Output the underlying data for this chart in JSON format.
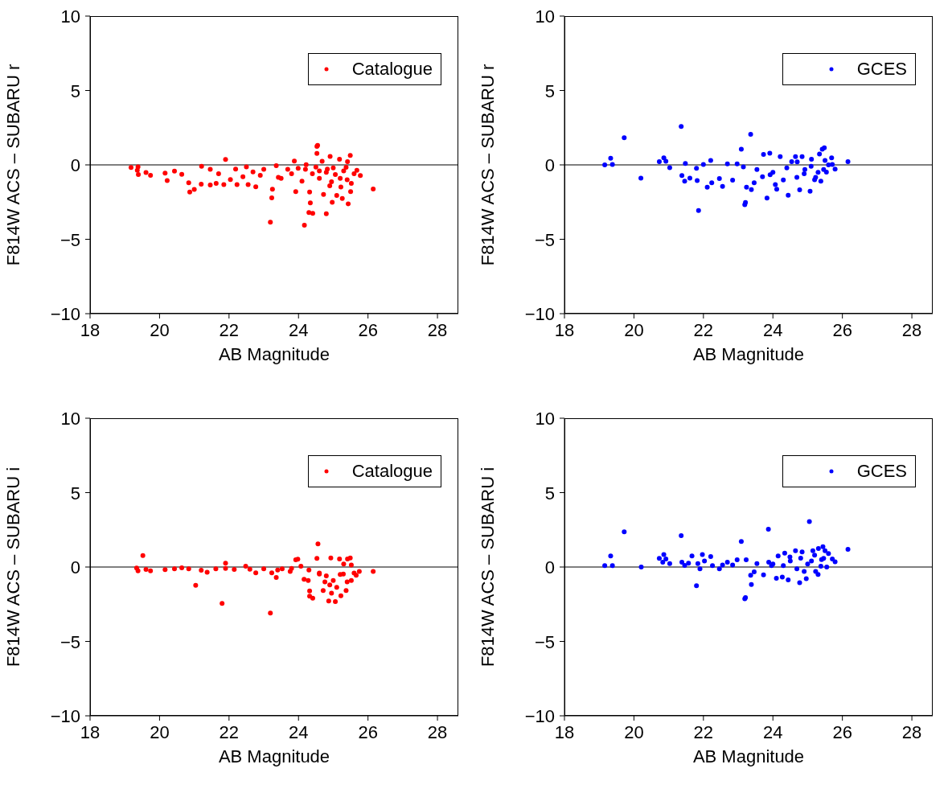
{
  "chart_data": [
    {
      "type": "scatter",
      "xlabel": "AB Magnitude",
      "ylabel": "F814W ACS – SUBARU r",
      "xlim": [
        18,
        28.6
      ],
      "xticks": [
        18,
        20,
        22,
        24,
        26,
        28
      ],
      "ylim": [
        -10,
        10
      ],
      "yticks": [
        -10,
        -5,
        0,
        5,
        10
      ],
      "legend": "top right",
      "marker": "circle",
      "ref_lines": [
        {
          "axis": "y",
          "value": 0,
          "color": "#000000"
        }
      ],
      "series": [
        {
          "name": "Catalogue",
          "color": "#ff0000",
          "x": [
            19.18,
            19.38,
            19.36,
            19.39,
            19.61,
            19.74,
            20.16,
            20.22,
            20.43,
            20.64,
            20.84,
            20.87,
            21.0,
            21.21,
            21.2,
            21.46,
            21.46,
            21.9,
            21.63,
            21.85,
            22.04,
            22.19,
            22.23,
            22.5,
            22.55,
            22.77,
            22.69,
            23.0,
            23.19,
            23.23,
            23.25,
            23.36,
            23.42,
            23.69,
            23.88,
            23.92,
            23.99,
            24.17,
            24.22,
            24.3,
            24.32,
            24.34,
            24.41,
            24.53,
            24.55,
            24.53,
            24.6,
            24.68,
            24.72,
            24.8,
            24.83,
            24.91,
            24.95,
            24.97,
            25.06,
            25.1,
            25.18,
            25.22,
            25.26,
            25.37,
            25.41,
            25.43,
            25.49,
            25.52,
            25.68,
            25.78,
            26.15,
            24.2,
            24.4,
            24.6,
            24.8,
            25.0,
            25.2,
            25.4,
            25.6,
            24.5,
            24.9,
            25.3,
            25.5,
            23.8,
            23.5,
            22.9,
            22.4,
            21.7,
            24.1
          ],
          "values": [
            -0.18,
            -0.14,
            -0.37,
            -0.65,
            -0.51,
            -0.7,
            -0.56,
            -1.05,
            -0.42,
            -0.63,
            -1.2,
            -1.83,
            -1.65,
            -0.1,
            -1.3,
            -0.3,
            -1.35,
            0.36,
            -1.24,
            -1.33,
            -0.98,
            -0.28,
            -1.33,
            -0.14,
            -1.33,
            -1.47,
            -0.47,
            -0.3,
            -3.85,
            -2.22,
            -1.64,
            -0.05,
            -0.84,
            -0.3,
            0.26,
            -1.8,
            -0.23,
            -4.05,
            0.02,
            -3.2,
            -1.83,
            -2.55,
            -3.26,
            1.24,
            1.31,
            0.77,
            -0.4,
            0.24,
            -1.99,
            -3.29,
            -0.28,
            0.57,
            -1.13,
            -2.51,
            -0.65,
            -2.05,
            0.38,
            -1.48,
            -2.26,
            -0.16,
            0.22,
            -2.62,
            0.63,
            -1.24,
            -0.37,
            -0.72,
            -1.62,
            -0.3,
            -0.6,
            -0.9,
            -0.5,
            -0.2,
            -0.9,
            -1.0,
            -0.6,
            -0.15,
            -1.4,
            -0.4,
            -1.8,
            -0.6,
            -0.9,
            -0.7,
            -0.8,
            -0.6,
            -1.1
          ]
        }
      ]
    },
    {
      "type": "scatter",
      "xlabel": "AB Magnitude",
      "ylabel": "F814W ACS – SUBARU r",
      "xlim": [
        18,
        28.6
      ],
      "xticks": [
        18,
        20,
        22,
        24,
        26,
        28
      ],
      "ylim": [
        -10,
        10
      ],
      "yticks": [
        -10,
        -5,
        0,
        5,
        10
      ],
      "legend": "top right",
      "marker": "circle",
      "ref_lines": [
        {
          "axis": "y",
          "value": 0,
          "color": "#000000"
        }
      ],
      "series": [
        {
          "name": "GCES",
          "color": "#0000ff",
          "x": [
            19.16,
            19.33,
            19.38,
            19.72,
            20.2,
            20.73,
            20.86,
            20.92,
            21.03,
            21.36,
            21.38,
            21.46,
            21.48,
            21.61,
            21.8,
            21.86,
            21.82,
            22.0,
            22.11,
            22.21,
            22.24,
            22.46,
            22.55,
            22.69,
            22.84,
            22.97,
            23.09,
            23.15,
            23.19,
            23.21,
            23.24,
            23.36,
            23.38,
            23.46,
            23.54,
            23.73,
            23.83,
            23.91,
            23.92,
            24.07,
            24.11,
            24.21,
            24.3,
            24.44,
            24.54,
            24.65,
            24.69,
            24.77,
            24.84,
            24.92,
            25.07,
            25.11,
            25.23,
            25.34,
            25.38,
            25.42,
            25.48,
            25.46,
            25.54,
            25.69,
            25.71,
            25.79,
            26.16,
            24.4,
            24.7,
            24.9,
            25.1,
            25.3,
            25.5,
            24.0,
            23.7,
            25.2,
            25.6
          ],
          "values": [
            0,
            0.44,
            0.03,
            1.82,
            -0.89,
            0.21,
            0.47,
            0.24,
            -0.19,
            2.58,
            -0.72,
            -1.1,
            0.09,
            -0.89,
            -0.23,
            -3.07,
            -1.05,
            0.03,
            -1.5,
            0.3,
            -1.2,
            -0.92,
            -1.45,
            0.07,
            -1.03,
            0.07,
            1.05,
            -0.14,
            -2.67,
            -2.53,
            -1.5,
            2.06,
            -1.66,
            -1.2,
            -0.31,
            0.7,
            -2.23,
            0.79,
            -0.66,
            -1.33,
            -1.64,
            0.56,
            -1.01,
            -2.04,
            0.21,
            0.56,
            -0.84,
            -1.68,
            0.56,
            -0.31,
            -1.77,
            0.38,
            -0.84,
            0.73,
            -1.1,
            1.05,
            1.15,
            -0.31,
            -0.49,
            0.47,
            0.03,
            -0.28,
            0.21,
            -0.2,
            0.2,
            -0.6,
            -0.1,
            -0.5,
            0.3,
            -0.5,
            -0.8,
            -1.0,
            0.0
          ]
        }
      ]
    },
    {
      "type": "scatter",
      "xlabel": "AB Magnitude",
      "ylabel": "F814W ACS – SUBARU i",
      "xlim": [
        18,
        28.6
      ],
      "xticks": [
        18,
        20,
        22,
        24,
        26,
        28
      ],
      "ylim": [
        -10,
        10
      ],
      "yticks": [
        -10,
        -5,
        0,
        5,
        10
      ],
      "legend": "top right",
      "marker": "circle",
      "ref_lines": [
        {
          "axis": "y",
          "value": 0,
          "color": "#000000"
        }
      ],
      "series": [
        {
          "name": "Catalogue",
          "color": "#ff0000",
          "x": [
            19.34,
            19.38,
            19.52,
            19.61,
            19.74,
            20.16,
            20.43,
            20.64,
            20.84,
            21.04,
            21.2,
            21.37,
            21.62,
            21.8,
            21.9,
            22.15,
            22.48,
            22.77,
            23.0,
            23.19,
            23.23,
            23.36,
            23.53,
            23.76,
            23.92,
            23.98,
            24.07,
            24.16,
            24.28,
            24.32,
            24.32,
            24.41,
            24.53,
            24.56,
            24.6,
            24.71,
            24.76,
            24.87,
            24.93,
            24.95,
            25.06,
            25.1,
            25.18,
            25.22,
            25.29,
            25.37,
            25.41,
            25.49,
            25.52,
            25.52,
            25.66,
            25.75,
            26.15,
            24.3,
            24.6,
            24.8,
            25.0,
            25.2,
            25.4,
            25.6,
            24.9,
            25.3,
            23.8,
            23.4,
            22.6,
            21.9
          ],
          "values": [
            -0.07,
            -0.25,
            0.77,
            -0.16,
            -0.26,
            -0.18,
            -0.12,
            -0.05,
            -0.12,
            -1.23,
            -0.21,
            -0.35,
            -0.12,
            -2.44,
            0.26,
            -0.16,
            0.05,
            -0.39,
            -0.12,
            -3.1,
            -0.39,
            -0.7,
            -0.12,
            -0.3,
            0.49,
            0.53,
            0.05,
            -0.82,
            -0.91,
            -1.61,
            -1.96,
            -2.09,
            0.58,
            1.56,
            -0.47,
            -1.58,
            -1.0,
            -2.28,
            0.61,
            -1.75,
            -2.32,
            -1.37,
            0.54,
            -1.93,
            -0.47,
            -1.58,
            0.54,
            0.61,
            0.14,
            -0.91,
            -0.56,
            -0.3,
            -0.3,
            -0.2,
            -0.4,
            -0.6,
            -0.9,
            -0.5,
            -1.0,
            -0.4,
            -1.2,
            0.2,
            -0.1,
            -0.2,
            -0.15,
            -0.1
          ]
        }
      ]
    },
    {
      "type": "scatter",
      "xlabel": "AB Magnitude",
      "ylabel": "F814W ACS – SUBARU i",
      "xlim": [
        18,
        28.6
      ],
      "xticks": [
        18,
        20,
        22,
        24,
        26,
        28
      ],
      "ylim": [
        -10,
        10
      ],
      "yticks": [
        -10,
        -5,
        0,
        5,
        10
      ],
      "legend": "top right",
      "marker": "circle",
      "ref_lines": [
        {
          "axis": "y",
          "value": 0,
          "color": "#000000"
        }
      ],
      "series": [
        {
          "name": "GCES",
          "color": "#0000ff",
          "x": [
            19.16,
            19.33,
            19.38,
            19.72,
            20.21,
            20.73,
            20.86,
            20.83,
            20.92,
            21.03,
            21.36,
            21.38,
            21.46,
            21.57,
            21.67,
            21.8,
            21.84,
            21.9,
            21.97,
            22.03,
            22.21,
            22.26,
            22.46,
            22.55,
            22.69,
            22.84,
            22.97,
            23.09,
            23.19,
            23.21,
            23.23,
            23.36,
            23.38,
            23.46,
            23.54,
            23.73,
            23.87,
            23.88,
            23.96,
            24.1,
            24.15,
            24.27,
            24.34,
            24.44,
            24.49,
            24.65,
            24.69,
            24.77,
            24.84,
            24.96,
            25.05,
            25.11,
            25.15,
            25.23,
            25.31,
            25.38,
            25.44,
            25.46,
            25.5,
            25.55,
            25.71,
            25.79,
            26.16,
            24.5,
            24.8,
            25.0,
            25.2,
            25.4,
            25.6,
            24.3,
            24.9,
            25.3,
            24.0
          ],
          "values": [
            0.09,
            0.75,
            0.09,
            2.37,
            0,
            0.58,
            0.84,
            0.32,
            0.54,
            0.23,
            2.11,
            0.32,
            0.11,
            0.26,
            0.75,
            -1.26,
            0.23,
            -0.12,
            0.84,
            0.4,
            0.7,
            0.09,
            -0.12,
            0.14,
            0.32,
            0.14,
            0.49,
            1.72,
            -2.14,
            -2.05,
            0.49,
            -0.56,
            -1.18,
            -0.33,
            0.23,
            -0.53,
            2.54,
            0.32,
            0.09,
            -0.75,
            0.75,
            -0.67,
            0.93,
            -0.86,
            0.67,
            1.1,
            -0.12,
            -1.05,
            1.02,
            -0.79,
            3.05,
            0.4,
            1.1,
            -0.3,
            1.25,
            0.05,
            1.37,
            0.58,
            1.1,
            0,
            0.54,
            0.35,
            1.19,
            0.4,
            0.6,
            0.2,
            0.8,
            0.5,
            0.9,
            0.1,
            -0.3,
            -0.5,
            0.2
          ]
        }
      ]
    }
  ]
}
